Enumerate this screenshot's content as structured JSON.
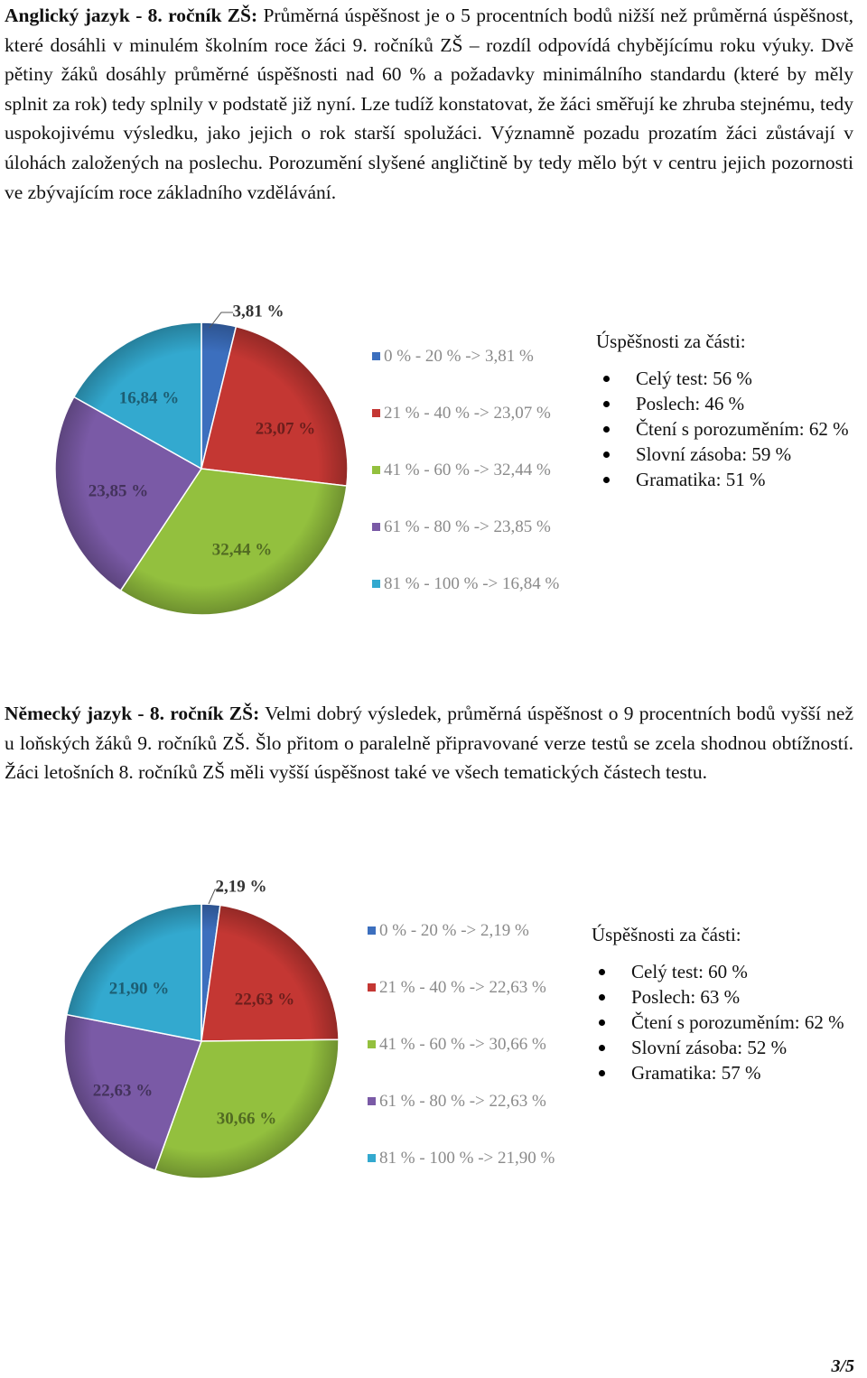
{
  "sections": [
    {
      "heading": "Anglický jazyk - 8. ročník ZŠ:",
      "text": " Průměrná úspěšnost je o 5 procentních bodů nižší než průměrná úspěšnost, které dosáhli v minulém školním roce žáci 9. ročníků ZŠ – rozdíl odpovídá chybějícímu roku výuky. Dvě pětiny žáků dosáhly průměrné úspěšnosti nad 60 % a požadavky minimálního standardu (které by měly splnit za rok) tedy splnily v podstatě již nyní. Lze tudíž konstatovat, že žáci směřují ke zhruba stejnému, tedy uspokojivému výsledku, jako jejich o rok starší spolužáci. Významně pozadu prozatím žáci zůstávají v úlohách založených na poslechu. Porozumění slyšené angličtině by tedy mělo být v centru jejich pozornosti ve zbývajícím roce základního vzdělávání."
    },
    {
      "heading": "Německý jazyk - 8. ročník ZŠ:",
      "text": " Velmi dobrý výsledek, průměrná úspěšnost o 9 procentních bodů vyšší než u loňských žáků 9. ročníků ZŠ. Šlo přitom o paralelně připravované verze testů se zcela shodnou obtížností. Žáci letošních 8. ročníků ZŠ měli vyšší úspěšnost také ve všech tematických částech testu."
    }
  ],
  "chart_data": [
    {
      "type": "pie",
      "categories": [
        "0 % - 20 %",
        "21 % - 40 %",
        "41 % - 60 %",
        "61 % - 80 %",
        "81 % - 100 %"
      ],
      "values": [
        3.81,
        23.07,
        32.44,
        23.85,
        16.84
      ],
      "data_labels": [
        "3,81 %",
        "23,07 %",
        "32,44 %",
        "23,85 %",
        "16,84 %"
      ],
      "legend": [
        "0 % - 20 % -> 3,81 %",
        "21 % - 40 % -> 23,07 %",
        "41 % - 60 % -> 32,44 %",
        "61 % - 80 % -> 23,85 %",
        "81 % - 100 % -> 16,84 %"
      ],
      "legend_position": "right",
      "colors": [
        "#3c6fbe",
        "#c43733",
        "#93c03e",
        "#7a5aa6",
        "#33a9cf"
      ]
    },
    {
      "type": "pie",
      "categories": [
        "0 % - 20 %",
        "21 % - 40 %",
        "41 % - 60 %",
        "61 % - 80 %",
        "81 % - 100 %"
      ],
      "values": [
        2.19,
        22.63,
        30.66,
        22.63,
        21.9
      ],
      "data_labels": [
        "2,19 %",
        "22,63 %",
        "30,66 %",
        "22,63 %",
        "21,90 %"
      ],
      "legend": [
        "0 % - 20 % -> 2,19 %",
        "21 % - 40 % -> 22,63 %",
        "41 % - 60 % -> 30,66 %",
        "61 % - 80 % -> 22,63 %",
        "81 % - 100 % -> 21,90 %"
      ],
      "legend_position": "right",
      "colors": [
        "#3c6fbe",
        "#c43733",
        "#93c03e",
        "#7a5aa6",
        "#33a9cf"
      ]
    }
  ],
  "parts": [
    {
      "title": "Úspěšnosti za části:",
      "items": [
        "Celý test: 56 %",
        "Poslech: 46 %",
        "Čtení s porozuměním: 62 %",
        "Slovní zásoba: 59 %",
        "Gramatika: 51 %"
      ]
    },
    {
      "title": "Úspěšnosti za části:",
      "items": [
        "Celý test: 60 %",
        "Poslech: 63 %",
        "Čtení s porozuměním: 62 %",
        "Slovní zásoba: 52 %",
        "Gramatika: 57 %"
      ]
    }
  ],
  "page_number": "3/5"
}
